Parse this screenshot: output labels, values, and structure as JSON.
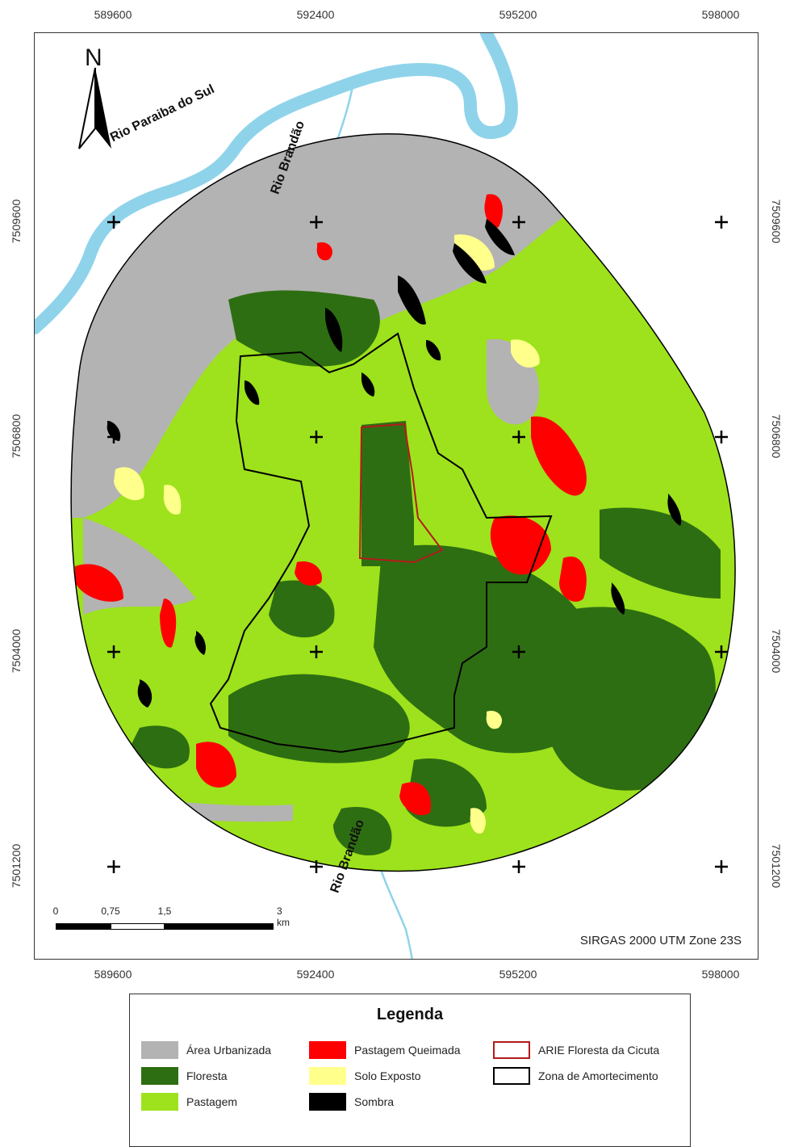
{
  "coords": {
    "x_top": [
      "589600",
      "592400",
      "595200",
      "598000"
    ],
    "x_bottom": [
      "589600",
      "592400",
      "595200",
      "598000"
    ],
    "y_left": [
      "7509600",
      "7506800",
      "7504000",
      "7501200"
    ],
    "y_right": [
      "7509600",
      "7506800",
      "7504000",
      "7501200"
    ]
  },
  "map": {
    "north_label": "N",
    "river_paraiba": "Rio Paraiba do Sul",
    "river_brandao_top": "Rio Brandão",
    "river_brandao_bottom": "Rio Brandão",
    "datum": "SIRGAS 2000 UTM Zone 23S",
    "scale_labels": [
      "0",
      "0,75",
      "1,5",
      "3 km"
    ]
  },
  "legend": {
    "title": "Legenda",
    "items": [
      {
        "label": "Área Urbanizada",
        "color": "#b3b3b3"
      },
      {
        "label": "Floresta",
        "color": "#2e6e12"
      },
      {
        "label": "Pastagem",
        "color": "#9de21c"
      },
      {
        "label": "Pastagem Queimada",
        "color": "#ff0000"
      },
      {
        "label": "Solo Exposto",
        "color": "#ffff8c"
      },
      {
        "label": "Sombra",
        "color": "#000000"
      },
      {
        "label": "ARIE Floresta da Cicuta",
        "color": "#b31b1b"
      },
      {
        "label": "Zona de Amortecimento",
        "color": "#000000"
      }
    ]
  },
  "colors": {
    "river": "#8fd3ea",
    "urban": "#b3b3b3",
    "forest": "#2e6e12",
    "pasture": "#9de21c",
    "burned": "#ff0000",
    "bare_soil": "#ffff8c",
    "shadow": "#000000"
  }
}
